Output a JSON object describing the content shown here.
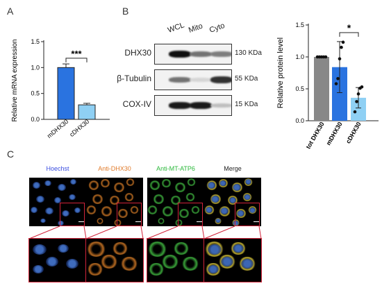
{
  "panels": {
    "a": {
      "letter": "A"
    },
    "b": {
      "letter": "B"
    },
    "c": {
      "letter": "C"
    }
  },
  "panelA": {
    "ylabel": "Relative mRNA expression",
    "yticks": [
      "0.0",
      "0.5",
      "1.0",
      "1.5"
    ],
    "significance": "***",
    "colors": {
      "mDHX30": "#2a73e0",
      "cDHX30": "#8fd0f4"
    }
  },
  "panelB": {
    "lanes": [
      "WCL",
      "Mito",
      "Cyto"
    ],
    "rows": [
      {
        "label": "DHX30",
        "kda": "130 KDa",
        "intensity": [
          1.0,
          0.55,
          0.5
        ]
      },
      {
        "label": "β-Tubulin",
        "kda": "55 KDa",
        "intensity": [
          0.55,
          0.1,
          0.85
        ]
      },
      {
        "label": "COX-IV",
        "kda": "15 KDa",
        "intensity": [
          0.95,
          0.95,
          0.2
        ]
      }
    ],
    "chart": {
      "ylabel": "Relative protein level",
      "yticks": [
        "0.0",
        "0.5",
        "1.0",
        "1.5"
      ],
      "significance": "*",
      "colors": {
        "tot DHX30": "#888888",
        "mDHX30": "#2a73e0",
        "cDHX30": "#8fd0f4"
      }
    }
  },
  "panelC": {
    "headers": [
      {
        "text": "Hoechst",
        "color": "#3a4de0"
      },
      {
        "text": "Anti-DHX30",
        "color": "#e07a2a"
      },
      {
        "text": "Anti-MT-ATP6",
        "color": "#2ab83a"
      },
      {
        "text": "Merge",
        "color": "#222222"
      }
    ]
  },
  "chart_data": [
    {
      "type": "bar",
      "categories": [
        "mDHX30",
        "cDHX30"
      ],
      "values": [
        1.0,
        0.28
      ],
      "errors": [
        0.07,
        0.03
      ],
      "ylabel": "Relative mRNA expression",
      "ylim": [
        0,
        1.5
      ]
    },
    {
      "type": "bar",
      "categories": [
        "tot DHX30",
        "mDHX30",
        "cDHX30"
      ],
      "values": [
        1.0,
        0.84,
        0.36
      ],
      "errors": [
        0.0,
        0.4,
        0.16
      ],
      "points": [
        [
          1,
          1,
          1,
          1,
          1
        ],
        [
          0.58,
          0.66,
          0.97,
          1.15,
          1.23
        ],
        [
          0.14,
          0.3,
          0.42,
          0.51,
          0.53
        ]
      ],
      "ylabel": "Relative protein level",
      "ylim": [
        0,
        1.5
      ]
    }
  ]
}
